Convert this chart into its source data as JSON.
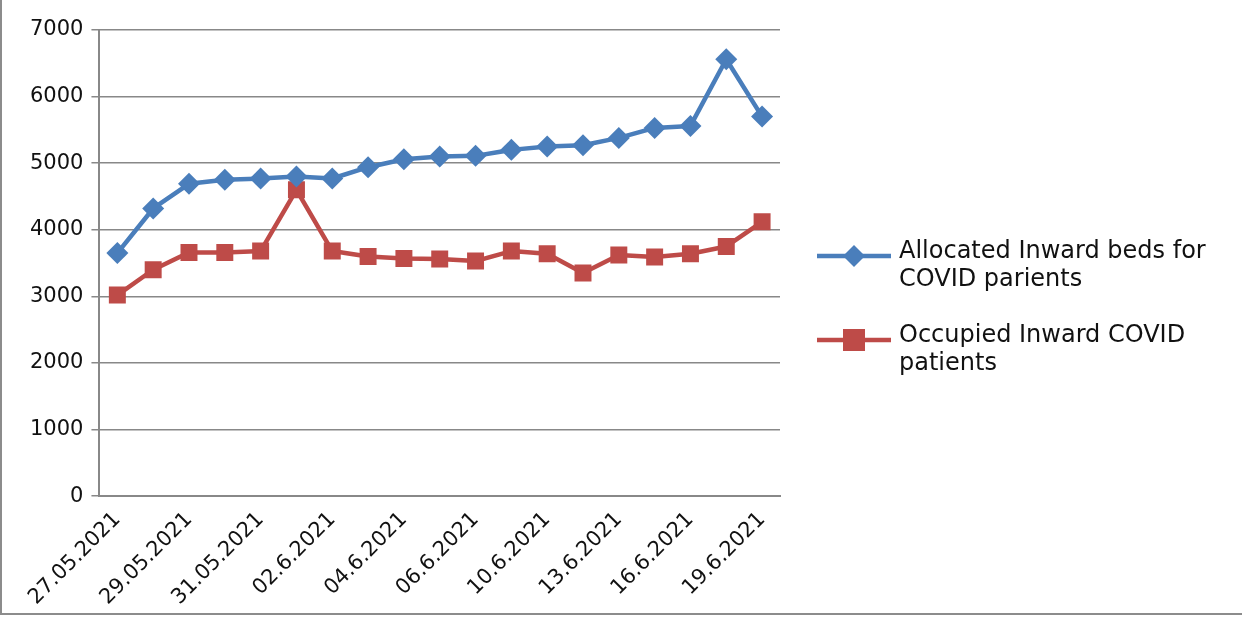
{
  "chart_data": {
    "type": "line",
    "categories": [
      "27.05.2021",
      null,
      "29.05.2021",
      null,
      "31.05.2021",
      null,
      "02.6.2021",
      null,
      "04.6.2021",
      null,
      "06.6.2021",
      null,
      "10.6.2021",
      null,
      "13.6.2021",
      null,
      "16.6.2021",
      null,
      "19.6.2021"
    ],
    "series": [
      {
        "name": "Allocated Inward beds for COVID parients",
        "color": "#4a7ebb",
        "marker": "diamond",
        "values": [
          3650,
          4320,
          4690,
          4750,
          4770,
          4800,
          4770,
          4940,
          5060,
          5100,
          5110,
          5200,
          5250,
          5270,
          5380,
          5530,
          5560,
          6560,
          5700
        ]
      },
      {
        "name": "Occupied Inward COVID patients",
        "color": "#be4b48",
        "marker": "square",
        "values": [
          3020,
          3400,
          3660,
          3660,
          3680,
          4600,
          3680,
          3600,
          3570,
          3560,
          3530,
          3680,
          3640,
          3350,
          3620,
          3590,
          3640,
          3750,
          4120
        ]
      }
    ],
    "ylim": [
      0,
      7000
    ],
    "yticks": [
      0,
      1000,
      2000,
      3000,
      4000,
      5000,
      6000,
      7000
    ],
    "grid": "y",
    "legend": "right",
    "line_style": "solid"
  }
}
